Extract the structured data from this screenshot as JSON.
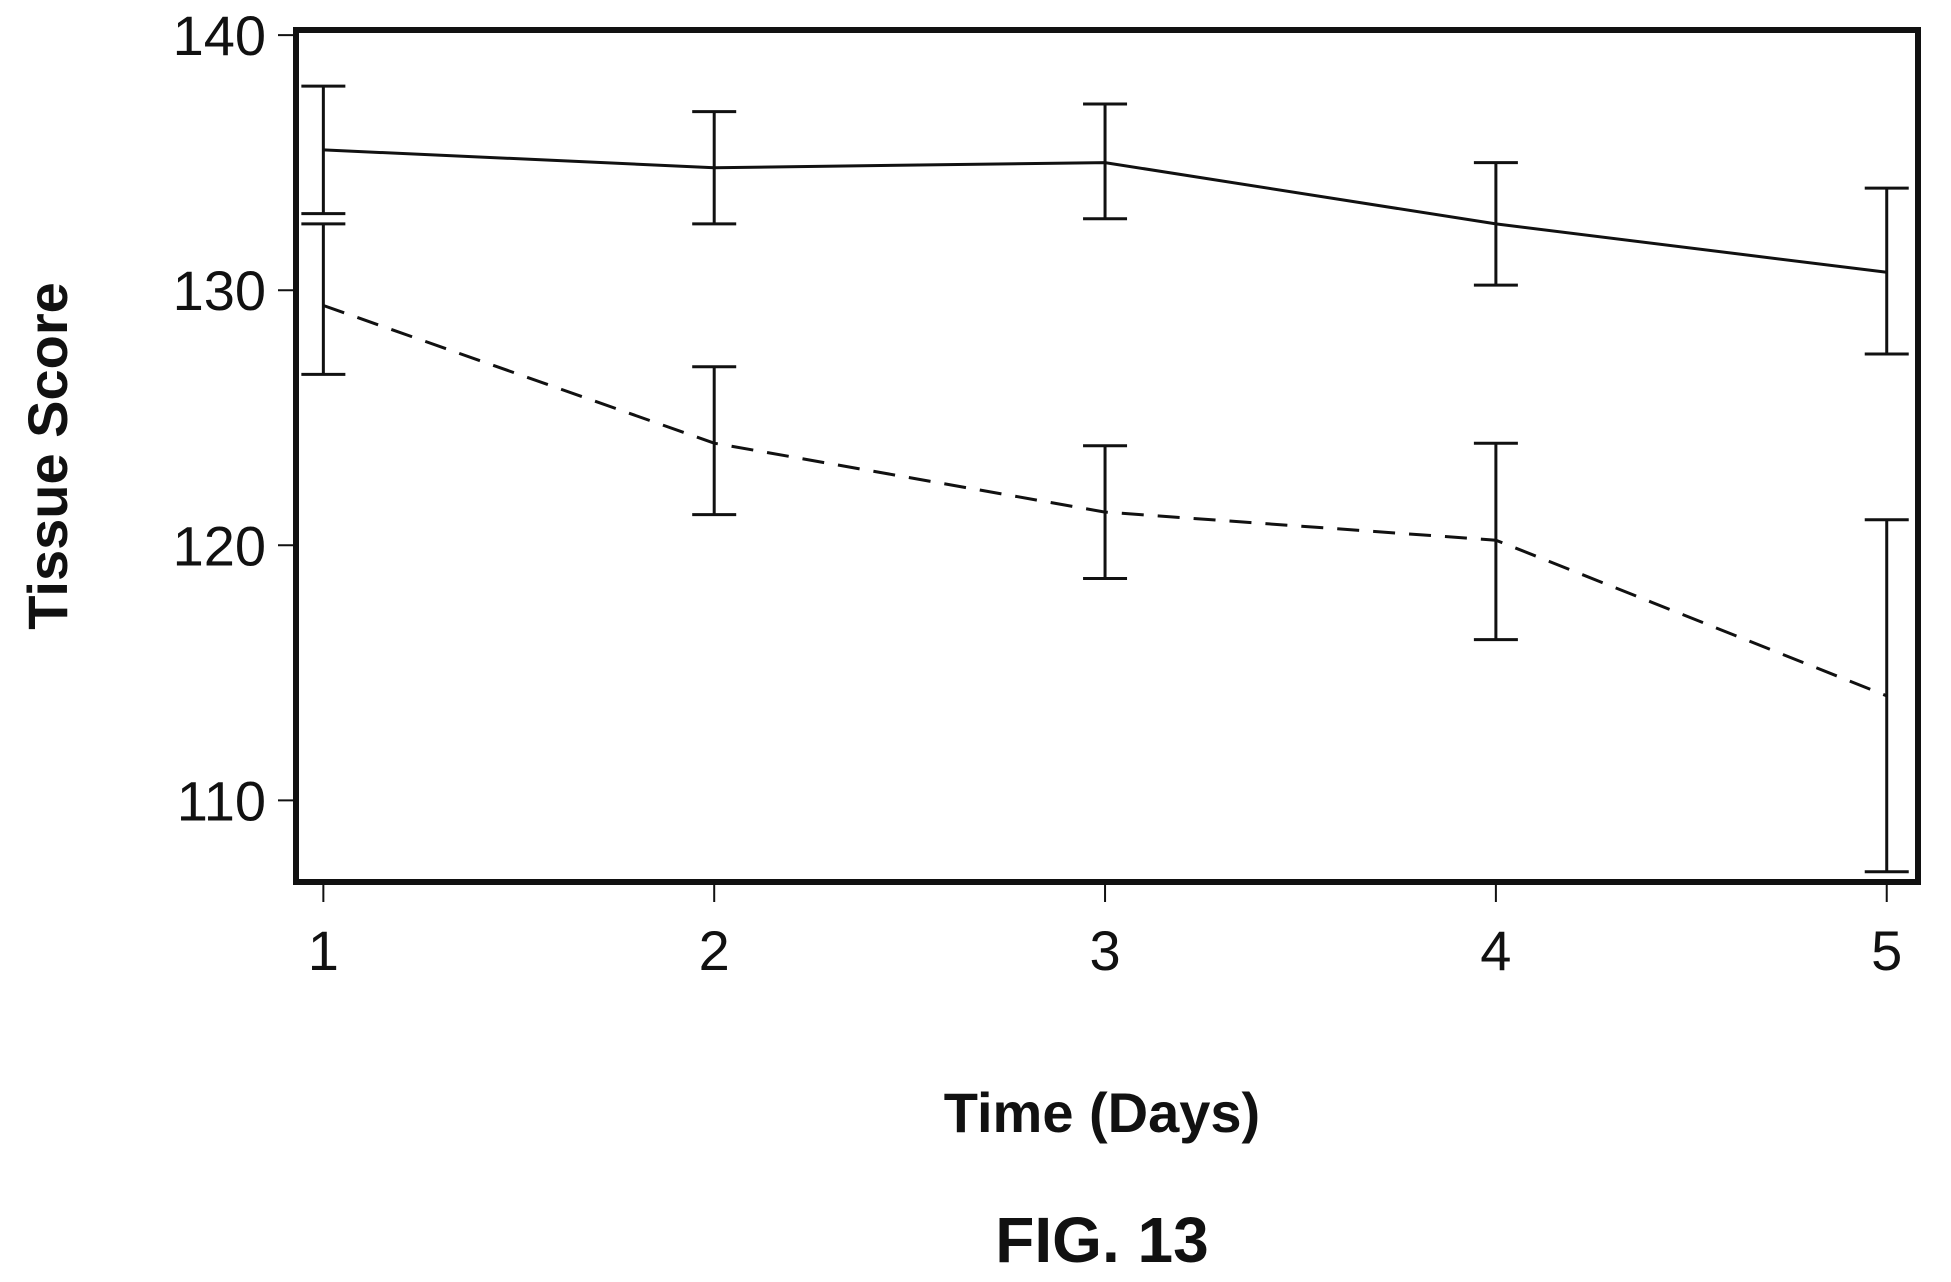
{
  "chart_data": {
    "type": "line",
    "caption": "FIG. 13",
    "title": "",
    "xlabel": "Time (Days)",
    "ylabel": "Tissue Score",
    "x": [
      1,
      2,
      3,
      4,
      5
    ],
    "xlim": [
      0.93,
      5.08
    ],
    "ylim": [
      106.8,
      140.2
    ],
    "xticks": [
      1,
      2,
      3,
      4,
      5
    ],
    "yticks": [
      110,
      120,
      130,
      140
    ],
    "grid": false,
    "legend": "none",
    "series": [
      {
        "style": "solid",
        "values": [
          135.5,
          134.8,
          135.0,
          132.6,
          130.7
        ],
        "err_low": [
          133.0,
          132.6,
          132.8,
          130.2,
          127.5
        ],
        "err_high": [
          138.0,
          137.0,
          137.3,
          135.0,
          134.0
        ]
      },
      {
        "style": "dashed",
        "values": [
          129.4,
          124.0,
          121.3,
          120.2,
          114.1
        ],
        "err_low": [
          126.7,
          121.2,
          118.7,
          116.3,
          107.2
        ],
        "err_high": [
          132.6,
          127.0,
          123.9,
          124.0,
          121.0
        ]
      }
    ]
  }
}
